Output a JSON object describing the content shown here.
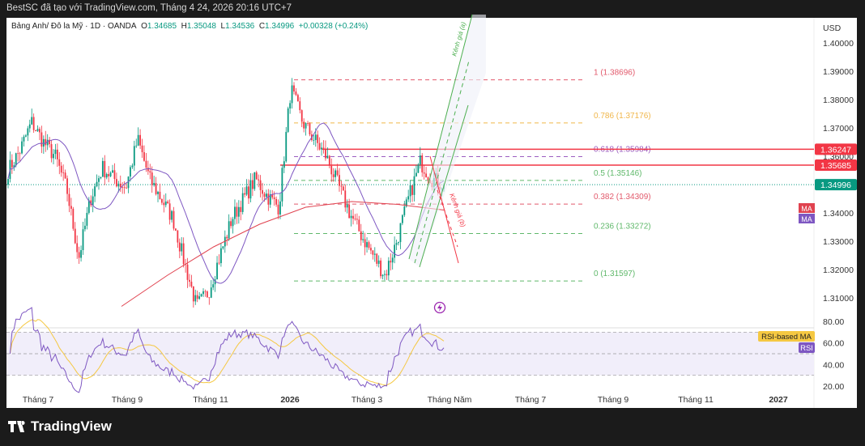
{
  "header": {
    "caption": "BestSC đã tạo với TradingView.com, Tháng 4 24, 2026 20:16 UTC+7"
  },
  "legend": {
    "symbol": "Bảng Anh/ Đô la Mỹ · 1D · OANDA",
    "o_label": "O",
    "o": "1.34685",
    "h_label": "H",
    "h": "1.35048",
    "l_label": "L",
    "l": "1.34536",
    "c_label": "C",
    "c": "1.34996",
    "change": "+0.00328 (+0.24%)"
  },
  "currency": "USD",
  "colors": {
    "up": "#089981",
    "down": "#f23645",
    "ma_slow": "#e0424f",
    "ma_fast": "#7e57c2",
    "rsi": "#7e57c2",
    "rsi_ma": "#f5c842",
    "channel_a": "#4caf50",
    "channel_b": "#f23645"
  },
  "chart_data": {
    "type": "candlestick",
    "title": "Bảng Anh/ Đô la Mỹ · 1D · OANDA",
    "ylim": [
      1.3,
      1.405
    ],
    "y_ticks": [
      "1.40000",
      "1.39000",
      "1.38000",
      "1.37000",
      "1.36000",
      "1.34000",
      "1.33000",
      "1.32000",
      "1.31000"
    ],
    "x_ticks": [
      "Tháng 7",
      "Tháng 9",
      "Tháng 11",
      "2026",
      "Tháng 3",
      "Tháng Năm",
      "Tháng 7",
      "Tháng 9",
      "Tháng 11",
      "2027"
    ],
    "approx_closes": [
      1.355,
      1.362,
      1.372,
      1.365,
      1.36,
      1.348,
      1.324,
      1.345,
      1.356,
      1.352,
      1.349,
      1.366,
      1.352,
      1.345,
      1.338,
      1.322,
      1.307,
      1.312,
      1.325,
      1.338,
      1.345,
      1.352,
      1.346,
      1.342,
      1.384,
      1.372,
      1.366,
      1.36,
      1.35,
      1.34,
      1.332,
      1.325,
      1.318,
      1.33,
      1.345,
      1.358,
      1.352,
      1.34996
    ],
    "ma_slow_approx": [
      1.307,
      1.318,
      1.328,
      1.336,
      1.342,
      1.344,
      1.343,
      1.341
    ],
    "price_labels": [
      {
        "value": "1.36247",
        "color": "#f23645"
      },
      {
        "value": "1.35685",
        "color": "#f23645"
      },
      {
        "value": "1.34996",
        "color": "#089981"
      }
    ],
    "fib_levels": [
      {
        "label": "1 (1.38696)",
        "value": 1.38696,
        "color": "#e25a6c"
      },
      {
        "label": "0.786 (1.37176)",
        "value": 1.37176,
        "color": "#f0b64a"
      },
      {
        "label": "0.618 (1.35984)",
        "value": 1.35984,
        "color": "#9c5dc0"
      },
      {
        "label": "0.5 (1.35146)",
        "value": 1.35146,
        "color": "#5fb86a"
      },
      {
        "label": "0.382 (1.34309)",
        "value": 1.34309,
        "color": "#e25a6c"
      },
      {
        "label": "0.236 (1.33272)",
        "value": 1.33272,
        "color": "#5fb86a"
      },
      {
        "label": "0 (1.31597)",
        "value": 1.31597,
        "color": "#5fb86a"
      }
    ],
    "channels": {
      "a": "Kênh giá (a)",
      "b": "Kênh giá (b)"
    },
    "ma_tags": [
      "MA",
      "MA"
    ],
    "rsi": {
      "ticks": [
        "80.00",
        "60.00",
        "40.00",
        "20.00"
      ],
      "band": [
        30,
        70
      ],
      "labels": [
        "RSI-based MA",
        "RSI"
      ]
    }
  },
  "footer": {
    "brand": "TradingView"
  }
}
